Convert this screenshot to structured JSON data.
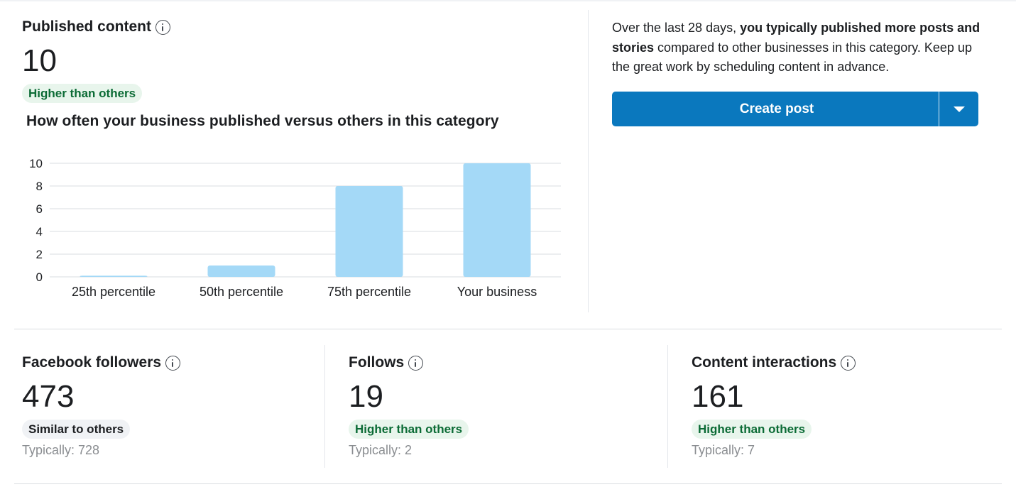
{
  "published": {
    "title": "Published content",
    "value": "10",
    "badge": "Higher than others",
    "chart_title": "How often your business published versus others in this category"
  },
  "chart_data": {
    "type": "bar",
    "categories": [
      "25th percentile",
      "50th percentile",
      "75th percentile",
      "Your business"
    ],
    "values": [
      0.1,
      1,
      8,
      10
    ],
    "title": "How often your business published versus others in this category",
    "xlabel": "",
    "ylabel": "",
    "ylim": [
      0,
      10
    ],
    "yticks": [
      "0",
      "2",
      "4",
      "6",
      "8",
      "10"
    ],
    "grid": true,
    "bar_color": "#a4d9f7"
  },
  "summary": {
    "lead": "Over the last 28 days, ",
    "emphasis": "you typically published more posts and stories",
    "tail": " compared to other businesses in this category. Keep up the great work by scheduling content in advance."
  },
  "create_post": {
    "label": "Create post",
    "color": "#0a78be"
  },
  "metrics": [
    {
      "title": "Facebook followers",
      "value": "473",
      "badge": "Similar to others",
      "typical": "Typically: 728"
    },
    {
      "title": "Follows",
      "value": "19",
      "badge": "Higher than others",
      "typical": "Typically: 2"
    },
    {
      "title": "Content interactions",
      "value": "161",
      "badge": "Higher than others",
      "typical": "Typically: 7"
    }
  ]
}
